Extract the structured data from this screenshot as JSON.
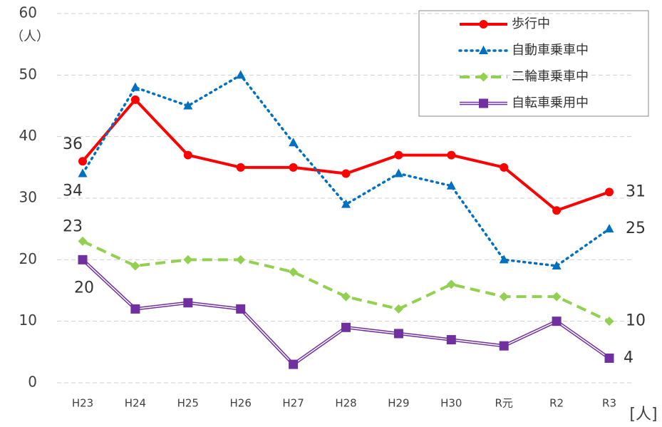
{
  "chart_data": {
    "type": "line",
    "y_unit_label": "（人）",
    "unit_label": "[人]",
    "categories": [
      "H23",
      "H24",
      "H25",
      "H26",
      "H27",
      "H28",
      "H29",
      "H30",
      "R元",
      "R2",
      "R3"
    ],
    "series": [
      {
        "name": "歩行中",
        "color": "#ff0000",
        "values": [
          36,
          46,
          37,
          35,
          35,
          34,
          37,
          37,
          35,
          28,
          31
        ]
      },
      {
        "name": "自動車乗車中",
        "color": "#0070c0",
        "values": [
          34,
          48,
          45,
          50,
          39,
          29,
          34,
          32,
          20,
          19,
          25
        ]
      },
      {
        "name": "二輪車乗車中",
        "color": "#92d050",
        "values": [
          23,
          19,
          20,
          20,
          18,
          14,
          12,
          16,
          14,
          14,
          10
        ]
      },
      {
        "name": "自転車乗用中",
        "color": "#7030a0",
        "values": [
          20,
          12,
          13,
          12,
          3,
          9,
          8,
          7,
          6,
          10,
          4
        ]
      }
    ],
    "ylim": [
      0,
      60
    ],
    "yticks": [
      0,
      10,
      20,
      30,
      40,
      50,
      60
    ],
    "grid": true,
    "legend": "upper right"
  }
}
